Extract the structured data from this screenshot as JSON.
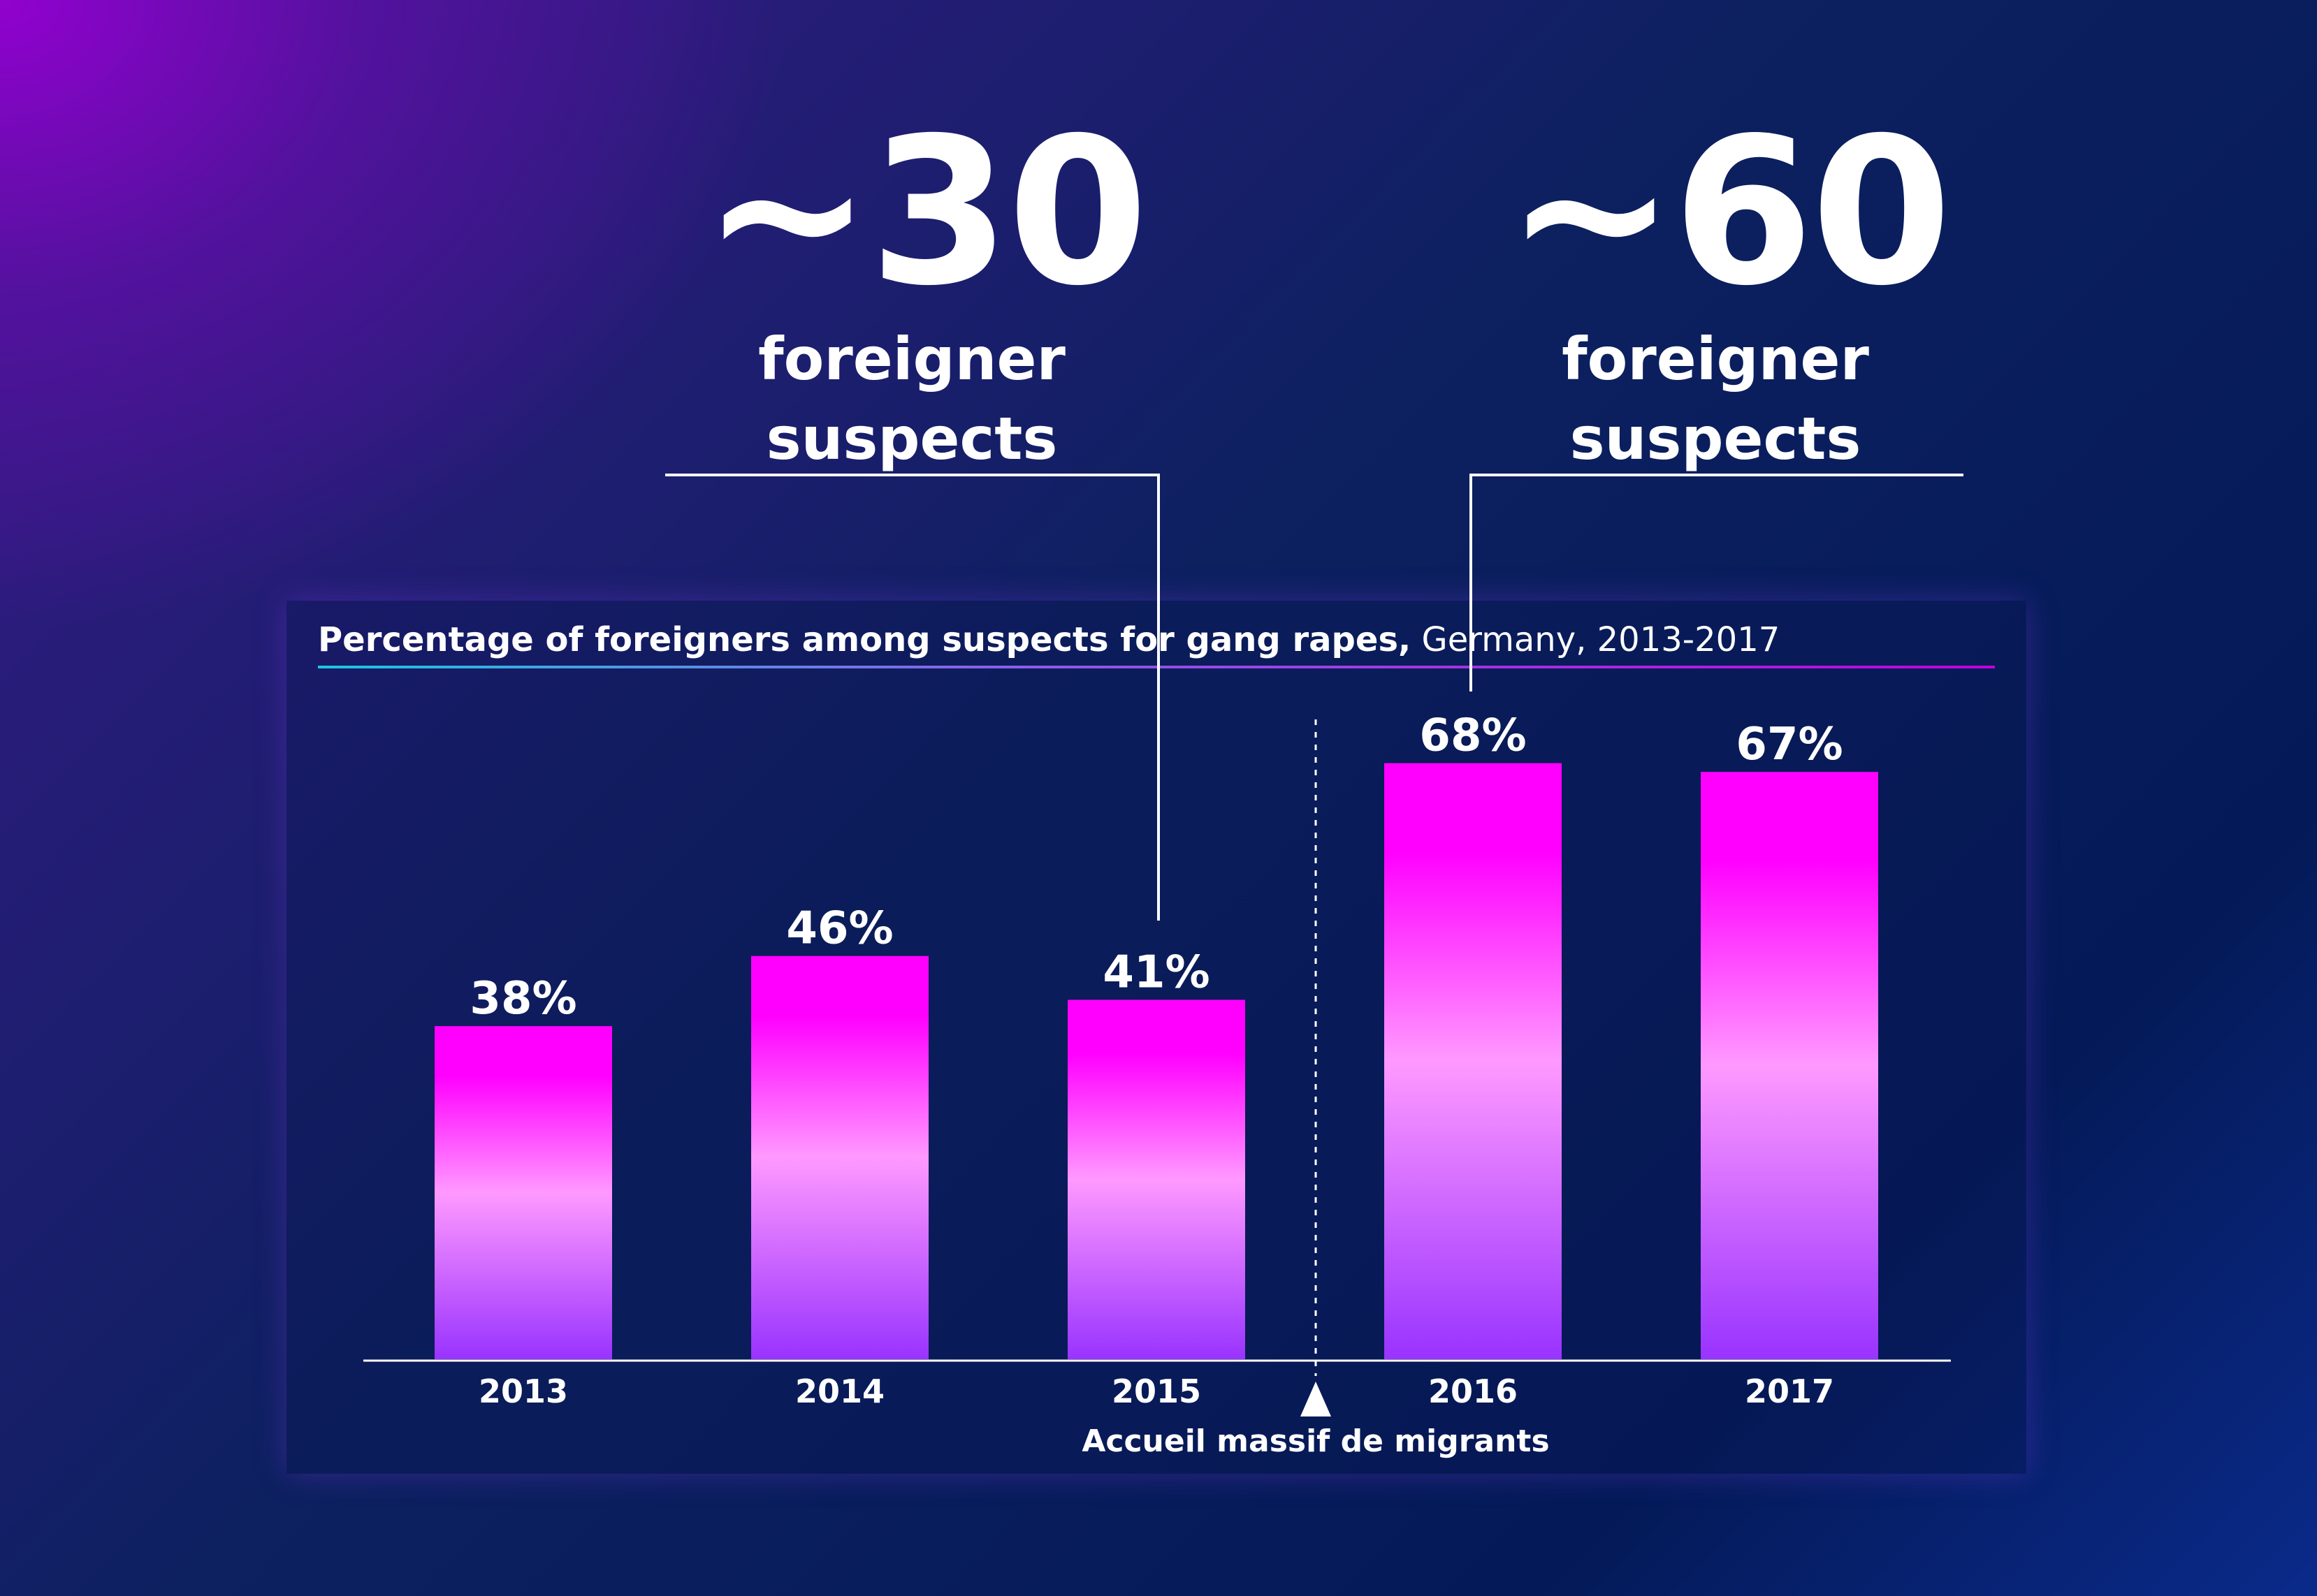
{
  "callouts": [
    {
      "value": "~30",
      "line1": "foreigner",
      "line2": "suspects"
    },
    {
      "value": "~60",
      "line1": "foreigner",
      "line2": "suspects"
    }
  ],
  "chart_data": {
    "type": "bar",
    "title_bold": "Percentage of foreigners among suspects for gang rapes,",
    "title_rest": " Germany, 2013-2017",
    "categories": [
      "2013",
      "2014",
      "2015",
      "2016",
      "2017"
    ],
    "values": [
      38,
      46,
      41,
      68,
      67
    ],
    "value_labels": [
      "38%",
      "46%",
      "41%",
      "68%",
      "67%"
    ],
    "ylim": [
      0,
      100
    ],
    "annotation": {
      "between": [
        "2015",
        "2016"
      ],
      "label": "Accueil massif de migrants"
    },
    "bar_gradient": [
      "#ff00ff",
      "#ff99ff",
      "#9933ff"
    ],
    "grid": false,
    "legend": "none"
  }
}
